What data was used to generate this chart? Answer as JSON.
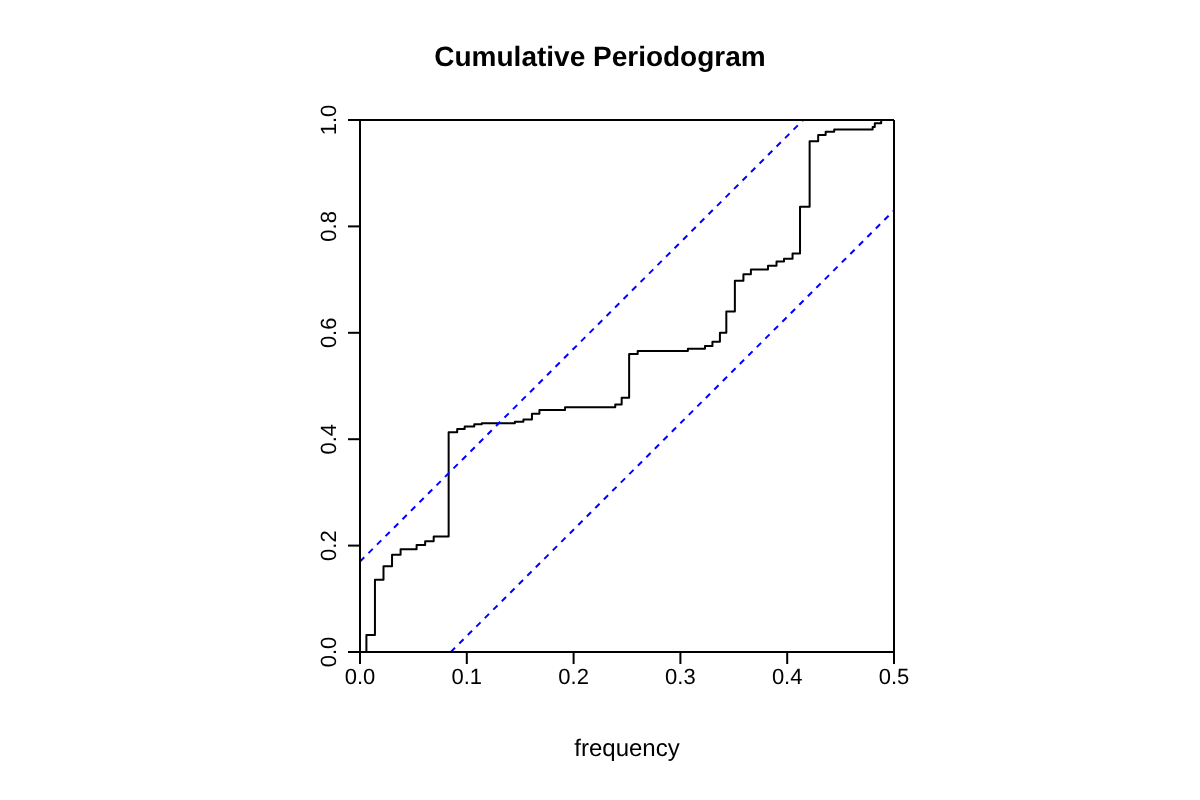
{
  "chart_data": {
    "type": "step",
    "title": "Cumulative Periodogram",
    "xlabel": "frequency",
    "xlim": [
      0,
      0.5
    ],
    "xticks": [
      {
        "value": 0,
        "label": "0.0"
      },
      0.1,
      0.2,
      0.3,
      0.4,
      0.5
    ],
    "ylim": [
      0,
      1
    ],
    "yticks": [
      {
        "value": 0,
        "label": "0.0"
      },
      0.2,
      0.4,
      0.6,
      0.8,
      {
        "value": 1,
        "label": "1.0"
      }
    ],
    "marker": "none",
    "series": [
      {
        "color": "#000000",
        "line_style": "solid",
        "x": [
          0,
          0.006,
          0.014,
          0.022,
          0.03,
          0.038,
          0.053,
          0.061,
          0.069,
          0.083,
          0.091,
          0.098,
          0.107,
          0.114,
          0.145,
          0.153,
          0.161,
          0.168,
          0.192,
          0.239,
          0.245,
          0.252,
          0.26,
          0.307,
          0.323,
          0.33,
          0.337,
          0.343,
          0.351,
          0.359,
          0.366,
          0.382,
          0.39,
          0.397,
          0.405,
          0.412,
          0.421,
          0.429,
          0.436,
          0.444,
          0.48,
          0.482,
          0.488,
          0.5
        ],
        "values": [
          0,
          0.032,
          0.136,
          0.161,
          0.183,
          0.193,
          0.201,
          0.208,
          0.217,
          0.413,
          0.419,
          0.424,
          0.428,
          0.43,
          0.433,
          0.437,
          0.448,
          0.455,
          0.46,
          0.465,
          0.478,
          0.56,
          0.566,
          0.57,
          0.575,
          0.583,
          0.6,
          0.64,
          0.698,
          0.71,
          0.719,
          0.726,
          0.734,
          0.739,
          0.749,
          0.837,
          0.96,
          0.972,
          0.978,
          0.982,
          0.987,
          0.994,
          1.0,
          1.0
        ]
      },
      {
        "type": "line",
        "color": "#0000ff",
        "line_style": "dashed",
        "x": [
          0,
          0.415
        ],
        "values": [
          0.17,
          1.0
        ]
      },
      {
        "type": "line",
        "color": "#0000ff",
        "line_style": "dashed",
        "x": [
          0.085,
          0.5
        ],
        "values": [
          0,
          0.83
        ]
      }
    ]
  }
}
